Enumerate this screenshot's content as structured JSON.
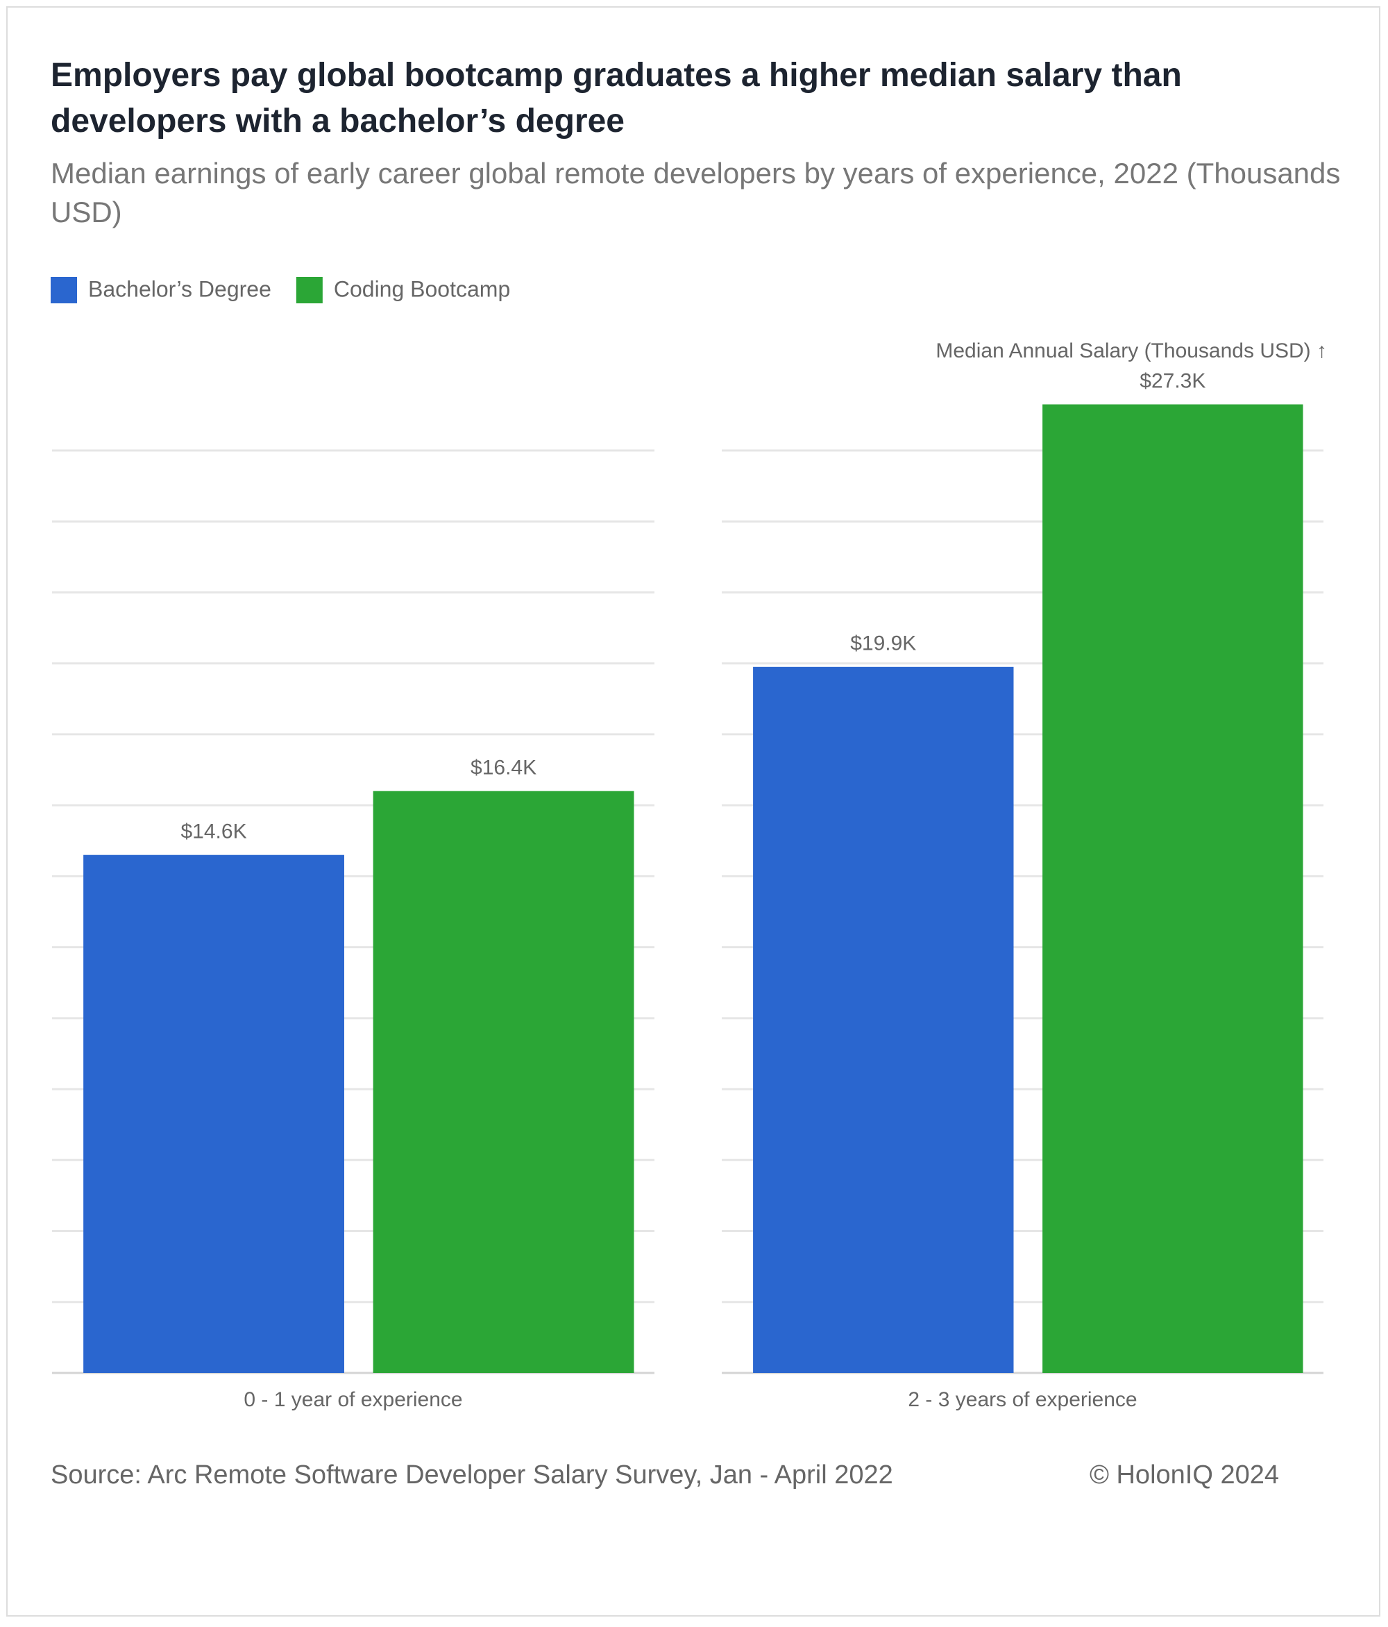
{
  "chart_data": {
    "type": "bar",
    "title": "Employers pay global bootcamp graduates a higher median salary than developers with a bachelor’s degree",
    "subtitle": "Median earnings of early career global remote developers by years of experience, 2022 (Thousands USD)",
    "y_label": "Median Annual Salary (Thousands USD) ↑",
    "categories": [
      "0 - 1 year of experience",
      "2 - 3 years of experience"
    ],
    "series": [
      {
        "name": "Bachelor’s Degree",
        "color": "#2a66cf",
        "values": [
          14.6,
          19.9
        ],
        "value_labels": [
          "$14.6K",
          "$19.9K"
        ]
      },
      {
        "name": "Coding Bootcamp",
        "color": "#2ba636",
        "values": [
          16.4,
          27.3
        ],
        "value_labels": [
          "$16.4K",
          "$27.3K"
        ]
      }
    ],
    "ylim": [
      0,
      26
    ],
    "yticks": [
      0,
      2,
      4,
      6,
      8,
      10,
      12,
      14,
      16,
      18,
      20,
      22,
      24,
      26
    ],
    "grid": true,
    "source": "Source: Arc Remote Software Developer Salary Survey, Jan - April 2022",
    "copyright": "© HolonIQ 2024"
  }
}
